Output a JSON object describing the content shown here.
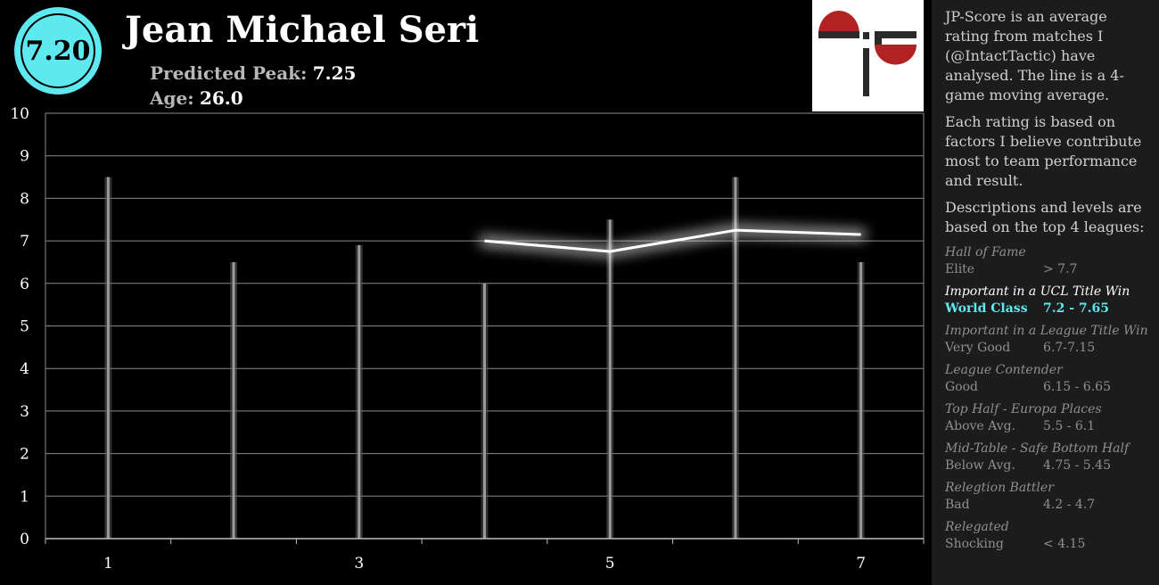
{
  "header": {
    "score": "7.20",
    "player_name": "Jean Michael Seri",
    "peak_label": "Predicted Peak:",
    "peak_value": "7.25",
    "age_label": "Age:",
    "age_value": "26.0"
  },
  "colors": {
    "accent": "#5ee8f0",
    "logo_red": "#b22222",
    "logo_dark": "#2a2a2a"
  },
  "side_panel": {
    "intro_1": "JP-Score is an average rating from matches I (@IntactTactic) have analysed. The line is a 4-game moving average.",
    "intro_2": "Each rating is based on factors I believe contribute most to team performance and result.",
    "intro_3": "Descriptions and levels are based on the top 4 leagues:",
    "tiers": [
      {
        "desc": "Hall of Fame",
        "level": "Elite",
        "range": "> 7.7"
      },
      {
        "desc": "Important in a UCL Title Win",
        "level": "World Class",
        "range": "7.2 - 7.65"
      },
      {
        "desc": "Important in a League Title Win",
        "level": "Very Good",
        "range": "6.7-7.15"
      },
      {
        "desc": "League Contender",
        "level": "Good",
        "range": "6.15 - 6.65"
      },
      {
        "desc": "Top Half - Europa Places",
        "level": "Above Avg.",
        "range": "5.5 - 6.1"
      },
      {
        "desc": "Mid-Table - Safe Bottom Half",
        "level": "Below Avg.",
        "range": "4.75 - 5.45"
      },
      {
        "desc": "Relegtion Battler",
        "level": "Bad",
        "range": "4.2 - 4.7"
      },
      {
        "desc": "Relegated",
        "level": "Shocking",
        "range": "< 4.15"
      }
    ]
  },
  "chart_data": {
    "type": "bar",
    "x": [
      1,
      2,
      3,
      4,
      5,
      6,
      7
    ],
    "x_tick_labels": [
      "1",
      "3",
      "5",
      "7"
    ],
    "y_tick_labels": [
      "0",
      "1",
      "2",
      "3",
      "4",
      "5",
      "6",
      "7",
      "8",
      "9",
      "10"
    ],
    "ylim": [
      0,
      10
    ],
    "grid": true,
    "series": [
      {
        "kind": "bar",
        "values": [
          8.5,
          6.5,
          6.9,
          6.0,
          7.5,
          8.5,
          6.5
        ]
      },
      {
        "kind": "line",
        "x": [
          4,
          5,
          6,
          7
        ],
        "values": [
          7.0,
          6.75,
          7.25,
          7.15
        ]
      }
    ]
  }
}
